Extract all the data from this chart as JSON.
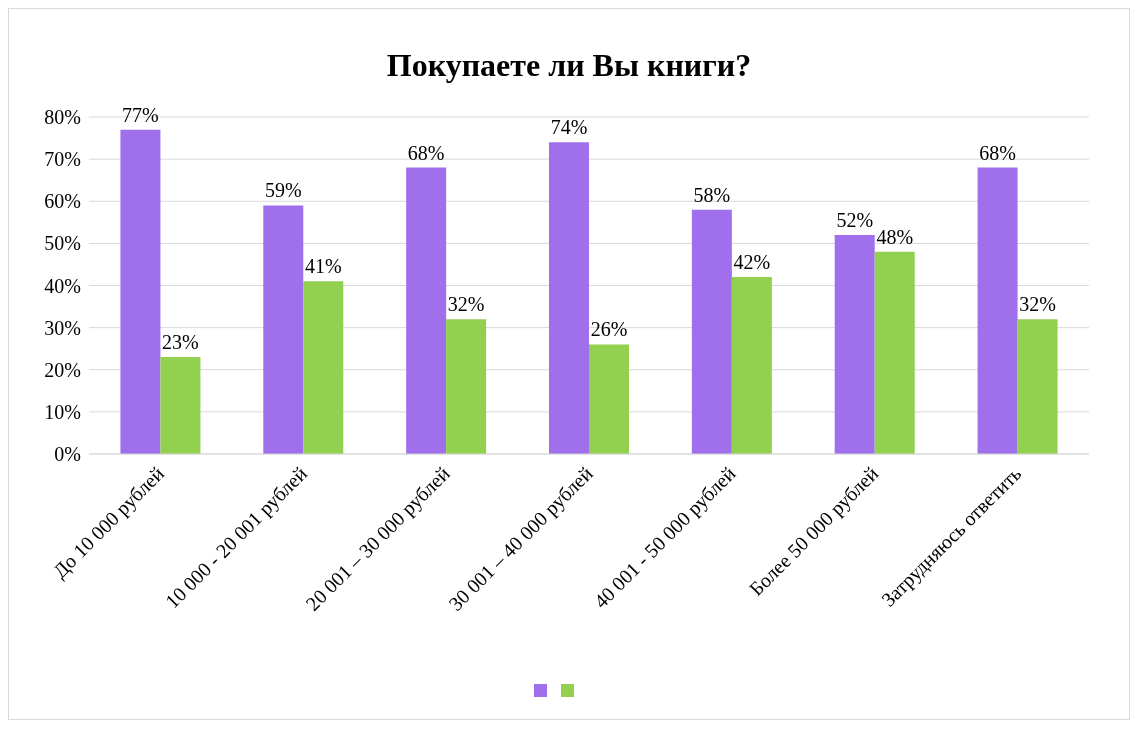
{
  "chart_data": {
    "type": "bar",
    "title": "Покупаете ли Вы книги?",
    "categories": [
      "До 10 000 рублей",
      "10 000 - 20 001 рублей",
      "20 001 – 30 000 рублей",
      "30 001 – 40 000 рублей",
      "40 001 - 50 000 рублей",
      "Более 50 000 рублей",
      "Затрудняюсь ответить"
    ],
    "series": [
      {
        "color": "#a070ec",
        "values": [
          77,
          59,
          68,
          74,
          58,
          52,
          68
        ],
        "value_labels": [
          "77%",
          "59%",
          "68%",
          "74%",
          "58%",
          "52%",
          "68%"
        ]
      },
      {
        "color": "#92d050",
        "values": [
          23,
          41,
          32,
          26,
          42,
          48,
          32
        ],
        "value_labels": [
          "23%",
          "41%",
          "32%",
          "26%",
          "42%",
          "48%",
          "32%"
        ]
      }
    ],
    "ylim": [
      0,
      80
    ],
    "yticks": [
      {
        "value": 0,
        "label": "0%"
      },
      {
        "value": 10,
        "label": "10%"
      },
      {
        "value": 20,
        "label": "20%"
      },
      {
        "value": 30,
        "label": "30%"
      },
      {
        "value": 40,
        "label": "40%"
      },
      {
        "value": 50,
        "label": "50%"
      },
      {
        "value": 60,
        "label": "60%"
      },
      {
        "value": 70,
        "label": "70%"
      },
      {
        "value": 80,
        "label": "80%"
      }
    ],
    "grid": "y"
  }
}
